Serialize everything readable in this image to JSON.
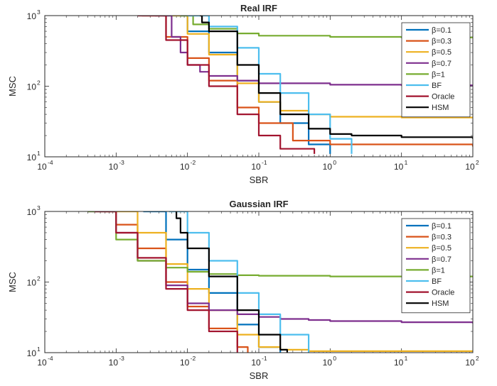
{
  "chart_data": [
    {
      "type": "line",
      "title": "Real IRF",
      "xlabel": "SBR",
      "ylabel": "MSC",
      "xscale": "log",
      "yscale": "log",
      "xlim": [
        0.0001,
        100
      ],
      "ylim": [
        10,
        1000
      ],
      "x_ticks": [
        {
          "base": "10",
          "exp": "-4"
        },
        {
          "base": "10",
          "exp": "-3"
        },
        {
          "base": "10",
          "exp": "-2"
        },
        {
          "base": "10",
          "exp": "-1"
        },
        {
          "base": "10",
          "exp": "0"
        },
        {
          "base": "10",
          "exp": "1"
        },
        {
          "base": "10",
          "exp": "2"
        }
      ],
      "y_ticks": [
        {
          "base": "10",
          "exp": "1"
        },
        {
          "base": "10",
          "exp": "2"
        },
        {
          "base": "10",
          "exp": "3"
        }
      ],
      "grid": false,
      "legend_position": "top-right",
      "series": [
        {
          "name": "β=0.1",
          "color": "#0072BD",
          "x": [
            0.0045,
            0.01,
            0.02,
            0.05,
            0.1,
            0.2,
            0.5,
            1.0
          ],
          "y": [
            1000,
            600,
            300,
            120,
            60,
            30,
            15,
            11
          ]
        },
        {
          "name": "β=0.3",
          "color": "#D95319",
          "x": [
            0.0023,
            0.005,
            0.01,
            0.02,
            0.05,
            0.1,
            0.3,
            1.0,
            100
          ],
          "y": [
            1000,
            500,
            250,
            120,
            50,
            30,
            17,
            15,
            14
          ]
        },
        {
          "name": "β=0.5",
          "color": "#EDB120",
          "x": [
            0.005,
            0.01,
            0.02,
            0.05,
            0.1,
            0.2,
            0.5,
            1,
            10,
            100
          ],
          "y": [
            1000,
            550,
            280,
            110,
            60,
            45,
            40,
            37,
            36,
            36
          ]
        },
        {
          "name": "β=0.7",
          "color": "#7E2F8E",
          "x": [
            0.0035,
            0.006,
            0.008,
            0.01,
            0.015,
            0.02,
            0.05,
            0.1,
            1,
            10,
            100
          ],
          "y": [
            1000,
            500,
            300,
            200,
            160,
            140,
            120,
            110,
            105,
            103,
            103
          ]
        },
        {
          "name": "β=1",
          "color": "#77AC30",
          "x": [
            0.008,
            0.012,
            0.02,
            0.05,
            0.1,
            1,
            10,
            100
          ],
          "y": [
            1000,
            750,
            650,
            560,
            520,
            500,
            490,
            490
          ]
        },
        {
          "name": "BF",
          "color": "#4DBEEE",
          "x": [
            0.01,
            0.02,
            0.05,
            0.1,
            0.2,
            0.5,
            1,
            2
          ],
          "y": [
            1000,
            700,
            350,
            150,
            80,
            40,
            18,
            11
          ]
        },
        {
          "name": "Oracle",
          "color": "#A2142F",
          "x": [
            0.002,
            0.005,
            0.01,
            0.02,
            0.05,
            0.1,
            0.2,
            0.6
          ],
          "y": [
            1000,
            450,
            200,
            100,
            40,
            20,
            13,
            11
          ]
        },
        {
          "name": "HSM",
          "color": "#000000",
          "x": [
            0.015,
            0.016,
            0.02,
            0.05,
            0.1,
            0.2,
            0.5,
            1,
            2,
            10,
            100
          ],
          "y": [
            1000,
            800,
            600,
            200,
            80,
            40,
            25,
            21,
            20,
            19,
            18
          ]
        }
      ]
    },
    {
      "type": "line",
      "title": "Gaussian IRF",
      "xlabel": "SBR",
      "ylabel": "MSC",
      "xscale": "log",
      "yscale": "log",
      "xlim": [
        0.0001,
        100
      ],
      "ylim": [
        10,
        1000
      ],
      "x_ticks": [
        {
          "base": "10",
          "exp": "-4"
        },
        {
          "base": "10",
          "exp": "-3"
        },
        {
          "base": "10",
          "exp": "-2"
        },
        {
          "base": "10",
          "exp": "-1"
        },
        {
          "base": "10",
          "exp": "0"
        },
        {
          "base": "10",
          "exp": "1"
        },
        {
          "base": "10",
          "exp": "2"
        }
      ],
      "y_ticks": [
        {
          "base": "10",
          "exp": "1"
        },
        {
          "base": "10",
          "exp": "2"
        },
        {
          "base": "10",
          "exp": "3"
        }
      ],
      "grid": false,
      "legend_position": "top-right",
      "series": [
        {
          "name": "β=0.1",
          "color": "#0072BD",
          "x": [
            0.0024,
            0.005,
            0.01,
            0.02,
            0.05,
            0.1,
            0.2
          ],
          "y": [
            1000,
            400,
            150,
            70,
            25,
            12,
            10
          ]
        },
        {
          "name": "β=0.3",
          "color": "#D95319",
          "x": [
            0.0007,
            0.001,
            0.002,
            0.005,
            0.01,
            0.02,
            0.05,
            0.07
          ],
          "y": [
            1000,
            650,
            300,
            100,
            45,
            22,
            12,
            10
          ]
        },
        {
          "name": "β=0.5",
          "color": "#EDB120",
          "x": [
            0.001,
            0.002,
            0.005,
            0.01,
            0.02,
            0.05,
            0.1,
            0.2,
            0.5,
            1,
            10,
            100
          ],
          "y": [
            1000,
            500,
            180,
            80,
            40,
            18,
            12,
            11,
            10.5,
            10.5,
            10.5,
            10.5
          ]
        },
        {
          "name": "β=0.7",
          "color": "#7E2F8E",
          "x": [
            0.0004,
            0.001,
            0.002,
            0.005,
            0.01,
            0.02,
            0.05,
            0.1,
            0.2,
            0.5,
            1,
            10,
            100
          ],
          "y": [
            1000,
            500,
            200,
            90,
            50,
            40,
            35,
            32,
            30,
            29,
            28,
            27,
            26
          ]
        },
        {
          "name": "β=1",
          "color": "#77AC30",
          "x": [
            0.0004,
            0.001,
            0.002,
            0.005,
            0.01,
            0.02,
            0.05,
            0.1,
            1,
            10,
            100
          ],
          "y": [
            1000,
            400,
            200,
            160,
            140,
            130,
            125,
            123,
            120,
            120,
            120
          ]
        },
        {
          "name": "BF",
          "color": "#4DBEEE",
          "x": [
            0.0055,
            0.01,
            0.02,
            0.05,
            0.1,
            0.2,
            0.5
          ],
          "y": [
            1000,
            500,
            200,
            70,
            35,
            18,
            10
          ]
        },
        {
          "name": "Oracle",
          "color": "#A2142F",
          "x": [
            0.0005,
            0.001,
            0.002,
            0.005,
            0.01,
            0.02,
            0.05
          ],
          "y": [
            1000,
            500,
            220,
            80,
            40,
            20,
            10
          ]
        },
        {
          "name": "HSM",
          "color": "#000000",
          "x": [
            0.0068,
            0.007,
            0.008,
            0.01,
            0.02,
            0.05,
            0.1,
            0.2,
            0.25
          ],
          "y": [
            1000,
            800,
            500,
            300,
            120,
            40,
            18,
            11,
            10
          ]
        }
      ]
    }
  ]
}
